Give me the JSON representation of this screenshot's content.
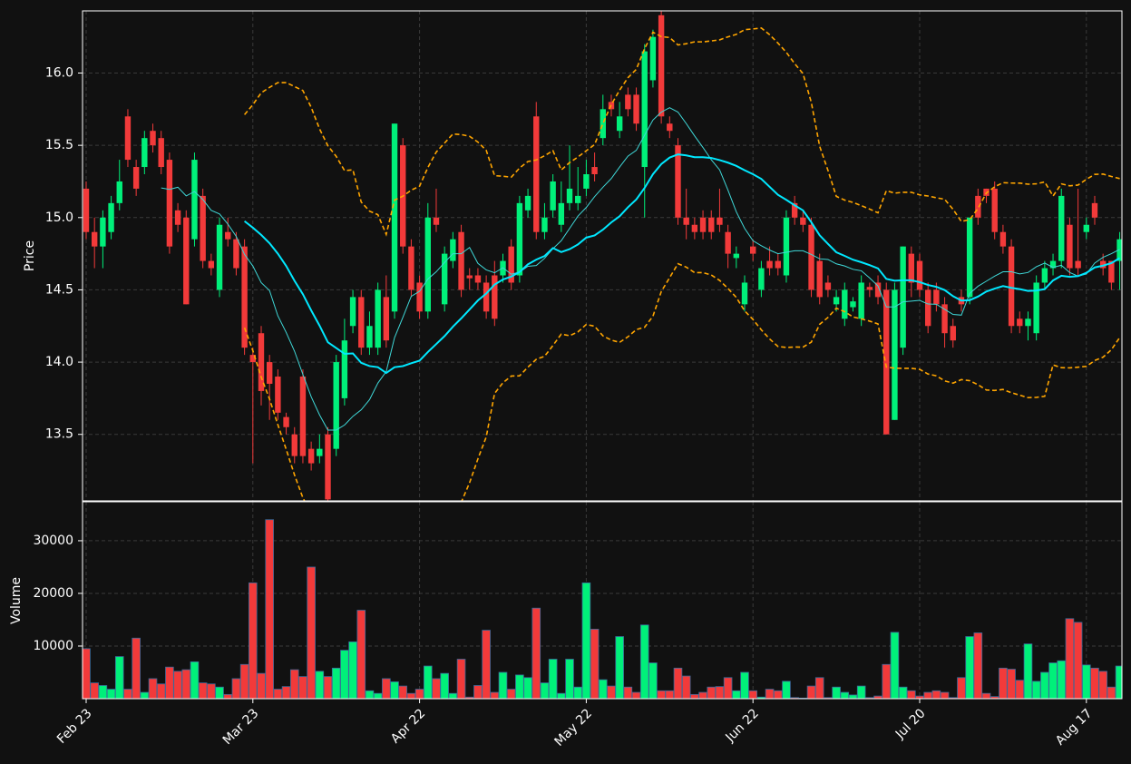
{
  "chart_data": {
    "type": "candlestick",
    "y_label": "Price",
    "volume_label": "Volume",
    "categories": [
      "Feb 23",
      null,
      null,
      null,
      null,
      null,
      null,
      null,
      null,
      null,
      null,
      null,
      null,
      null,
      null,
      null,
      null,
      null,
      null,
      null,
      "Mar 23",
      null,
      null,
      null,
      null,
      null,
      null,
      null,
      null,
      null,
      null,
      null,
      null,
      null,
      null,
      null,
      null,
      null,
      null,
      null,
      "Apr 22",
      null,
      null,
      null,
      null,
      null,
      null,
      null,
      null,
      null,
      null,
      null,
      null,
      null,
      null,
      null,
      null,
      null,
      null,
      null,
      "May 22",
      null,
      null,
      null,
      null,
      null,
      null,
      null,
      null,
      null,
      null,
      null,
      null,
      null,
      null,
      null,
      null,
      null,
      null,
      null,
      "Jun 22",
      null,
      null,
      null,
      null,
      null,
      null,
      null,
      null,
      null,
      null,
      null,
      null,
      null,
      null,
      null,
      null,
      null,
      null,
      null,
      "Jul 20",
      null,
      null,
      null,
      null,
      null,
      null,
      null,
      null,
      null,
      null,
      null,
      null,
      null,
      null,
      null,
      null,
      null,
      null,
      null,
      "Aug 17",
      null,
      null,
      null,
      null
    ],
    "open": [
      15.2,
      14.9,
      14.8,
      14.9,
      15.1,
      15.7,
      15.35,
      15.35,
      15.6,
      15.55,
      15.4,
      15.05,
      15.0,
      14.85,
      15.15,
      14.7,
      14.5,
      14.9,
      14.85,
      14.8,
      14.05,
      14.2,
      14.0,
      13.9,
      13.62,
      13.5,
      13.9,
      13.4,
      13.35,
      13.5,
      13.4,
      13.75,
      14.25,
      14.45,
      14.1,
      14.1,
      14.45,
      14.35,
      15.5,
      14.8,
      14.55,
      14.35,
      15.0,
      14.4,
      14.7,
      14.9,
      14.6,
      14.6,
      14.55,
      14.6,
      14.6,
      14.8,
      14.6,
      15.05,
      15.7,
      14.9,
      15.05,
      14.95,
      15.1,
      15.1,
      15.2,
      15.35,
      15.55,
      15.8,
      15.6,
      15.85,
      15.85,
      15.35,
      15.95,
      16.4,
      15.65,
      15.5,
      15.0,
      14.95,
      15.0,
      15.0,
      15.0,
      14.9,
      14.72,
      14.4,
      14.8,
      14.5,
      14.7,
      14.7,
      14.6,
      15.1,
      15.0,
      14.95,
      14.7,
      14.55,
      14.4,
      14.3,
      14.38,
      14.3,
      14.52,
      14.55,
      14.5,
      13.6,
      14.1,
      14.75,
      14.7,
      14.5,
      14.5,
      14.4,
      14.25,
      14.45,
      14.45,
      15.15,
      15.2,
      15.2,
      14.9,
      14.8,
      14.3,
      14.25,
      14.2,
      14.55,
      14.65,
      14.7,
      14.95,
      14.7,
      14.9,
      15.1,
      14.7,
      14.7,
      14.7
    ],
    "high": [
      15.25,
      15.0,
      15.05,
      15.15,
      15.4,
      15.75,
      15.4,
      15.6,
      15.65,
      15.6,
      15.45,
      15.1,
      15.05,
      15.45,
      15.2,
      14.75,
      15.0,
      15.0,
      14.9,
      14.85,
      14.1,
      14.25,
      14.05,
      13.95,
      13.65,
      13.55,
      13.95,
      13.45,
      13.5,
      13.55,
      14.05,
      14.3,
      14.5,
      14.5,
      14.35,
      14.55,
      14.6,
      15.65,
      15.55,
      14.85,
      14.6,
      15.1,
      15.2,
      14.8,
      14.9,
      14.95,
      14.65,
      14.65,
      14.6,
      14.7,
      14.75,
      14.85,
      15.15,
      15.2,
      15.8,
      15.1,
      15.3,
      15.25,
      15.5,
      15.35,
      15.4,
      15.45,
      15.85,
      15.85,
      15.8,
      15.9,
      15.9,
      16.2,
      16.3,
      16.45,
      15.7,
      15.55,
      15.2,
      15.0,
      15.05,
      15.05,
      15.2,
      14.95,
      14.8,
      14.6,
      14.85,
      14.7,
      14.8,
      14.75,
      15.05,
      15.15,
      15.05,
      15.0,
      14.75,
      14.6,
      14.5,
      14.55,
      14.45,
      14.6,
      14.55,
      14.6,
      14.55,
      14.55,
      14.8,
      14.8,
      14.75,
      14.55,
      14.55,
      14.45,
      14.3,
      14.5,
      15.0,
      15.2,
      15.2,
      15.25,
      14.95,
      14.85,
      14.35,
      14.35,
      14.6,
      14.7,
      14.75,
      15.2,
      15.0,
      15.2,
      15.0,
      15.15,
      14.75,
      14.7,
      14.9
    ],
    "low": [
      14.85,
      14.65,
      14.65,
      14.85,
      15.05,
      15.35,
      15.15,
      15.3,
      15.45,
      15.3,
      14.75,
      14.9,
      14.4,
      14.8,
      14.65,
      14.6,
      14.45,
      14.8,
      14.6,
      14.05,
      13.3,
      13.7,
      13.6,
      13.6,
      13.5,
      13.3,
      13.3,
      13.25,
      13.3,
      13.0,
      13.35,
      13.7,
      14.2,
      14.05,
      14.05,
      14.05,
      14.1,
      14.3,
      14.75,
      14.45,
      14.3,
      14.3,
      14.9,
      14.35,
      14.65,
      14.45,
      14.5,
      14.5,
      14.3,
      14.25,
      14.55,
      14.5,
      14.55,
      15.0,
      14.85,
      14.85,
      15.0,
      14.9,
      15.05,
      15.05,
      15.15,
      15.25,
      15.5,
      15.7,
      15.55,
      15.7,
      15.6,
      15.0,
      15.9,
      15.65,
      15.55,
      14.95,
      14.85,
      14.85,
      14.85,
      14.85,
      14.9,
      14.65,
      14.65,
      14.35,
      14.7,
      14.45,
      14.6,
      14.6,
      14.55,
      14.95,
      14.9,
      14.45,
      14.4,
      14.45,
      14.35,
      14.25,
      14.35,
      14.25,
      14.45,
      14.4,
      13.5,
      13.6,
      14.05,
      14.45,
      14.45,
      14.2,
      14.35,
      14.1,
      14.1,
      14.35,
      14.4,
      14.95,
      15.1,
      14.85,
      14.75,
      14.2,
      14.2,
      14.15,
      14.15,
      14.5,
      14.6,
      14.65,
      14.6,
      14.6,
      14.85,
      14.95,
      14.6,
      14.5,
      14.5
    ],
    "close": [
      14.9,
      14.8,
      15.0,
      15.1,
      15.25,
      15.4,
      15.2,
      15.55,
      15.5,
      15.35,
      14.8,
      14.95,
      14.4,
      15.4,
      14.7,
      14.65,
      14.95,
      14.85,
      14.65,
      14.1,
      14.0,
      13.8,
      13.85,
      13.65,
      13.55,
      13.35,
      13.35,
      13.3,
      13.4,
      13.05,
      14.0,
      14.15,
      14.45,
      14.1,
      14.25,
      14.5,
      14.15,
      15.65,
      14.8,
      14.5,
      14.35,
      15.0,
      14.95,
      14.75,
      14.85,
      14.5,
      14.58,
      14.55,
      14.35,
      14.3,
      14.7,
      14.55,
      15.1,
      15.15,
      14.9,
      15.0,
      15.25,
      15.1,
      15.2,
      15.15,
      15.3,
      15.3,
      15.75,
      15.75,
      15.7,
      15.75,
      15.65,
      16.15,
      16.25,
      15.7,
      15.6,
      15.0,
      14.95,
      14.9,
      14.9,
      14.9,
      14.95,
      14.75,
      14.75,
      14.55,
      14.75,
      14.65,
      14.65,
      14.65,
      15.0,
      15.0,
      14.95,
      14.5,
      14.45,
      14.5,
      14.45,
      14.5,
      14.42,
      14.55,
      14.5,
      14.45,
      13.5,
      14.5,
      14.8,
      14.55,
      14.5,
      14.25,
      14.4,
      14.2,
      14.15,
      14.4,
      15.0,
      15.0,
      15.15,
      14.9,
      14.8,
      14.25,
      14.25,
      14.3,
      14.55,
      14.65,
      14.7,
      15.15,
      14.65,
      14.65,
      14.95,
      15.0,
      14.65,
      14.55,
      14.85
    ],
    "volume": [
      9500,
      3000,
      2500,
      1800,
      8000,
      1800,
      11500,
      1200,
      3800,
      2800,
      6000,
      5200,
      5500,
      7000,
      3000,
      2800,
      2200,
      800,
      3800,
      6500,
      22000,
      4800,
      34000,
      1800,
      2300,
      5500,
      4200,
      25000,
      5200,
      4200,
      5800,
      9200,
      10800,
      16800,
      1500,
      1000,
      3800,
      3200,
      2400,
      1000,
      1800,
      6200,
      3800,
      4800,
      1000,
      7500,
      300,
      2500,
      13000,
      1200,
      5000,
      1800,
      4500,
      4000,
      17200,
      3000,
      7500,
      1000,
      7500,
      2200,
      22000,
      13200,
      3600,
      2400,
      11800,
      2200,
      1200,
      14000,
      6800,
      1500,
      1500,
      5800,
      4300,
      800,
      1200,
      2200,
      2300,
      4000,
      1500,
      5000,
      1500,
      300,
      1800,
      1500,
      3300,
      200,
      100,
      2400,
      4000,
      200,
      2200,
      1200,
      700,
      2400,
      200,
      500,
      6500,
      12600,
      2200,
      1500,
      500,
      1200,
      1500,
      1200,
      200,
      4000,
      11800,
      12500,
      1000,
      400,
      5800,
      5600,
      3500,
      10400,
      3300,
      5000,
      6800,
      7200,
      15200,
      14500,
      6400,
      5800,
      5200,
      2200,
      6200
    ],
    "up_color": "#00f07a",
    "down_color": "#f23a3a",
    "ylim": [
      13.04,
      16.43
    ],
    "yticks": [
      13.5,
      {
        "value": 14,
        "label": "14.0"
      },
      14.5,
      {
        "value": 15,
        "label": "15.0"
      },
      15.5,
      {
        "value": 16,
        "label": "16.0"
      }
    ],
    "volume_ylim": [
      0,
      37400
    ],
    "volume_yticks": [
      10000,
      20000,
      30000
    ],
    "moving_averages": [
      {
        "window": 10,
        "color": "#3fd8d8"
      },
      {
        "window": 20,
        "color": "#00e8ff"
      }
    ],
    "bollinger": {
      "window": 20,
      "k": 2,
      "color": "#ffa500"
    },
    "grid": true
  }
}
